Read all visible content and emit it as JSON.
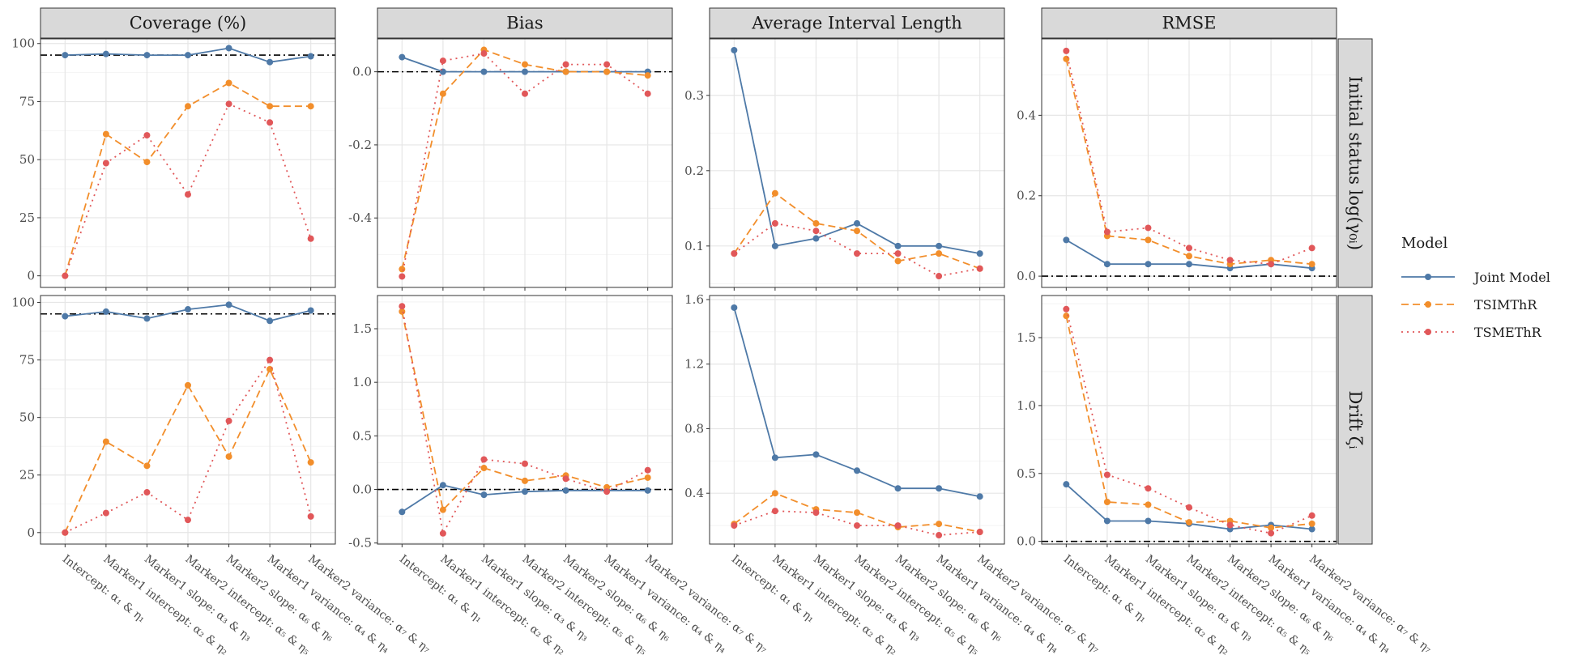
{
  "chart_data": {
    "type": "line",
    "categories": [
      "Intercept: α₁ & η₁",
      "Marker1 intercept: α₂ & η₂",
      "Marker1 slope: α₃ & η₃",
      "Marker2 intercept: α₅ & η₅",
      "Marker2 slope: α₆ & η₆",
      "Marker1 variance: α₄ & η₄",
      "Marker2 variance: α₇ & η₇"
    ],
    "columns": [
      "Coverage (%)",
      "Bias",
      "Average Interval Length",
      "RMSE"
    ],
    "rows": [
      "Initial status  log(γ₀ᵢ)",
      "Drift  ζᵢ"
    ],
    "legend": {
      "title": "Model",
      "placement": "right",
      "entries": [
        "Joint Model",
        "TSIMThR",
        "TSMEThR"
      ]
    },
    "colors": {
      "Joint Model": "#4e79a7",
      "TSIMThR": "#f28e2b",
      "TSMEThR": "#e15759"
    },
    "grid": true,
    "reference_lines": {
      "Coverage (%)": 95,
      "Bias": 0,
      "RMSE": 0
    },
    "panels": [
      {
        "row": "Initial status  log(γ₀ᵢ)",
        "column": "Coverage (%)",
        "ylim": [
          -5,
          102
        ],
        "yticks": [
          0,
          25,
          50,
          75,
          100
        ],
        "ytick_labels": [
          "0",
          "25",
          "50",
          "75",
          "100"
        ],
        "series": [
          {
            "name": "Joint Model",
            "values": [
              95,
              95.5,
              95,
              95,
              98,
              92,
              94.5
            ]
          },
          {
            "name": "TSIMThR",
            "values": [
              0,
              61,
              49,
              73,
              83,
              73,
              73
            ]
          },
          {
            "name": "TSMEThR",
            "values": [
              0,
              48.5,
              60.5,
              35,
              74,
              66,
              16
            ]
          }
        ]
      },
      {
        "row": "Initial status  log(γ₀ᵢ)",
        "column": "Bias",
        "ylim": [
          -0.59,
          0.09
        ],
        "yticks": [
          -0.4,
          -0.2,
          0.0
        ],
        "ytick_labels": [
          "-0.4",
          "-0.2",
          "0.0"
        ],
        "series": [
          {
            "name": "Joint Model",
            "values": [
              0.04,
              0.0,
              0.0,
              0.0,
              0.0,
              0.0,
              0.0
            ]
          },
          {
            "name": "TSIMThR",
            "values": [
              -0.54,
              -0.06,
              0.06,
              0.02,
              0.0,
              0.0,
              -0.01
            ]
          },
          {
            "name": "TSMEThR",
            "values": [
              -0.56,
              0.03,
              0.05,
              -0.06,
              0.02,
              0.02,
              -0.06
            ]
          }
        ]
      },
      {
        "row": "Initial status  log(γ₀ᵢ)",
        "column": "Average Interval Length",
        "ylim": [
          0.045,
          0.375
        ],
        "yticks": [
          0.1,
          0.2,
          0.3
        ],
        "ytick_labels": [
          "0.1",
          "0.2",
          "0.3"
        ],
        "series": [
          {
            "name": "Joint Model",
            "values": [
              0.36,
              0.1,
              0.11,
              0.13,
              0.1,
              0.1,
              0.09
            ]
          },
          {
            "name": "TSIMThR",
            "values": [
              0.09,
              0.17,
              0.13,
              0.12,
              0.08,
              0.09,
              0.07
            ]
          },
          {
            "name": "TSMEThR",
            "values": [
              0.09,
              0.13,
              0.12,
              0.09,
              0.09,
              0.06,
              0.07
            ]
          }
        ]
      },
      {
        "row": "Initial status  log(γ₀ᵢ)",
        "column": "RMSE",
        "ylim": [
          -0.028,
          0.59
        ],
        "yticks": [
          0.0,
          0.2,
          0.4
        ],
        "ytick_labels": [
          "0.0",
          "0.2",
          "0.4"
        ],
        "series": [
          {
            "name": "Joint Model",
            "values": [
              0.09,
              0.03,
              0.03,
              0.03,
              0.02,
              0.03,
              0.02
            ]
          },
          {
            "name": "TSIMThR",
            "values": [
              0.54,
              0.1,
              0.09,
              0.05,
              0.03,
              0.04,
              0.03
            ]
          },
          {
            "name": "TSMEThR",
            "values": [
              0.56,
              0.11,
              0.12,
              0.07,
              0.04,
              0.03,
              0.07
            ]
          }
        ]
      },
      {
        "row": "Drift  ζᵢ",
        "column": "Coverage (%)",
        "ylim": [
          -5,
          103
        ],
        "yticks": [
          0,
          25,
          50,
          75,
          100
        ],
        "ytick_labels": [
          "0",
          "25",
          "50",
          "75",
          "100"
        ],
        "series": [
          {
            "name": "Joint Model",
            "values": [
              94,
              96,
              93,
              97,
              99,
              92,
              96.5
            ]
          },
          {
            "name": "TSIMThR",
            "values": [
              0,
              39.5,
              29,
              64,
              33,
              71,
              30.5
            ]
          },
          {
            "name": "TSMEThR",
            "values": [
              0,
              8.5,
              17.5,
              5.5,
              48.5,
              75,
              7
            ]
          }
        ]
      },
      {
        "row": "Drift  ζᵢ",
        "column": "Bias",
        "ylim": [
          -0.51,
          1.81
        ],
        "yticks": [
          -0.5,
          0.0,
          0.5,
          1.0,
          1.5
        ],
        "ytick_labels": [
          "-0.5",
          "0.0",
          "0.5",
          "1.0",
          "1.5"
        ],
        "series": [
          {
            "name": "Joint Model",
            "values": [
              -0.21,
              0.04,
              -0.05,
              -0.02,
              -0.01,
              -0.01,
              -0.01
            ]
          },
          {
            "name": "TSIMThR",
            "values": [
              1.66,
              -0.19,
              0.2,
              0.08,
              0.13,
              0.02,
              0.11
            ]
          },
          {
            "name": "TSMEThR",
            "values": [
              1.71,
              -0.41,
              0.28,
              0.24,
              0.1,
              -0.02,
              0.18
            ]
          }
        ]
      },
      {
        "row": "Drift  ζᵢ",
        "column": "Average Interval Length",
        "ylim": [
          0.085,
          1.625
        ],
        "yticks": [
          0.4,
          0.8,
          1.2,
          1.6
        ],
        "ytick_labels": [
          "0.4",
          "0.8",
          "1.2",
          "1.6"
        ],
        "series": [
          {
            "name": "Joint Model",
            "values": [
              1.55,
              0.62,
              0.64,
              0.54,
              0.43,
              0.43,
              0.38
            ]
          },
          {
            "name": "TSIMThR",
            "values": [
              0.21,
              0.4,
              0.3,
              0.28,
              0.19,
              0.21,
              0.16
            ]
          },
          {
            "name": "TSMEThR",
            "values": [
              0.2,
              0.29,
              0.28,
              0.2,
              0.2,
              0.14,
              0.16
            ]
          }
        ]
      },
      {
        "row": "Drift  ζᵢ",
        "column": "RMSE",
        "ylim": [
          -0.02,
          1.81
        ],
        "yticks": [
          0.0,
          0.5,
          1.0,
          1.5
        ],
        "ytick_labels": [
          "0.0",
          "0.5",
          "1.0",
          "1.5"
        ],
        "series": [
          {
            "name": "Joint Model",
            "values": [
              0.42,
              0.15,
              0.15,
              0.13,
              0.09,
              0.12,
              0.09
            ]
          },
          {
            "name": "TSIMThR",
            "values": [
              1.66,
              0.29,
              0.27,
              0.14,
              0.15,
              0.1,
              0.13
            ]
          },
          {
            "name": "TSMEThR",
            "values": [
              1.71,
              0.49,
              0.39,
              0.25,
              0.12,
              0.06,
              0.19
            ]
          }
        ]
      }
    ]
  }
}
